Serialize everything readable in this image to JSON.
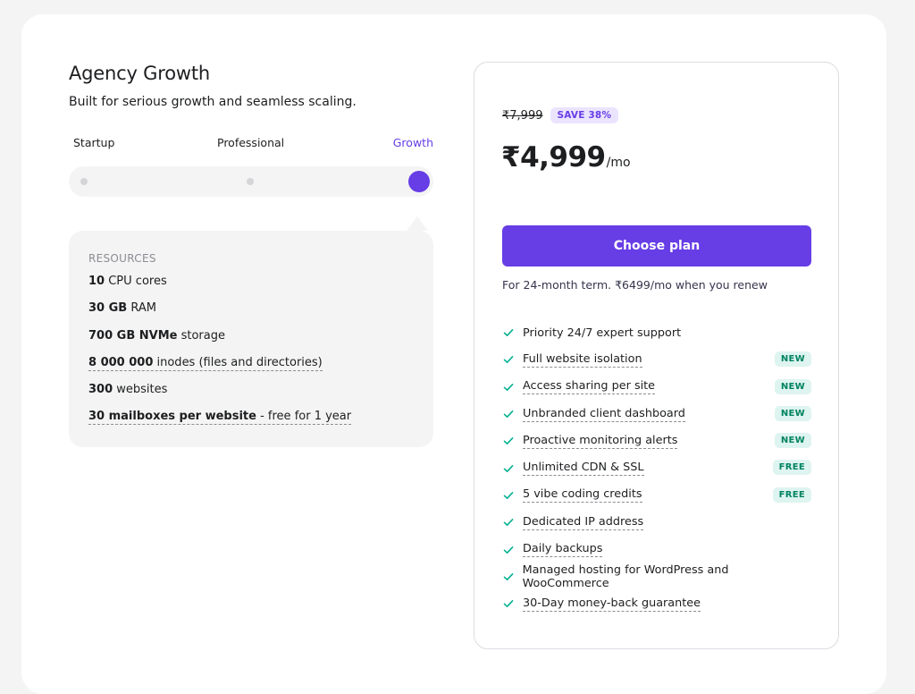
{
  "plan": {
    "title": "Agency Growth",
    "subtitle": "Built for serious growth and seamless scaling."
  },
  "tiers": {
    "startup": "Startup",
    "professional": "Professional",
    "growth": "Growth",
    "selected": "Growth"
  },
  "resources": {
    "heading": "RESOURCES",
    "cpu_value": "10",
    "cpu_label": " CPU cores",
    "ram_value": "30 GB",
    "ram_label": " RAM",
    "storage_value": "700 GB NVMe",
    "storage_label": " storage",
    "inodes_value": "8 000 000",
    "inodes_label": " inodes (files and directories)",
    "websites_value": "300",
    "websites_label": " websites",
    "mailboxes_value": "30 mailboxes per website",
    "mailboxes_label": " - free for 1 year"
  },
  "pricing": {
    "old_price": "₹7,999",
    "save_badge": "SAVE 38%",
    "price": "₹4,999",
    "period": "/mo",
    "cta": "Choose plan",
    "renew_note": "For 24-month term. ₹6499/mo when you renew"
  },
  "features": [
    {
      "label": "Priority 24/7 expert support",
      "tag": ""
    },
    {
      "label": "Full website isolation",
      "tag": "NEW"
    },
    {
      "label": "Access sharing per site",
      "tag": "NEW"
    },
    {
      "label": "Unbranded client dashboard",
      "tag": "NEW"
    },
    {
      "label": "Proactive monitoring alerts",
      "tag": "NEW"
    },
    {
      "label": "Unlimited CDN & SSL",
      "tag": "FREE"
    },
    {
      "label": "5 vibe coding credits",
      "tag": "FREE"
    },
    {
      "label": "Dedicated IP address",
      "tag": ""
    },
    {
      "label": "Daily backups",
      "tag": ""
    },
    {
      "label": "Managed hosting for WordPress and WooCommerce",
      "tag": ""
    },
    {
      "label": "30-Day money-back guarantee",
      "tag": ""
    }
  ],
  "colors": {
    "accent": "#673de6",
    "check": "#00b090",
    "tag_bg": "#def4f0",
    "tag_text": "#008361"
  },
  "icons": {
    "feature_check": "check-icon"
  }
}
